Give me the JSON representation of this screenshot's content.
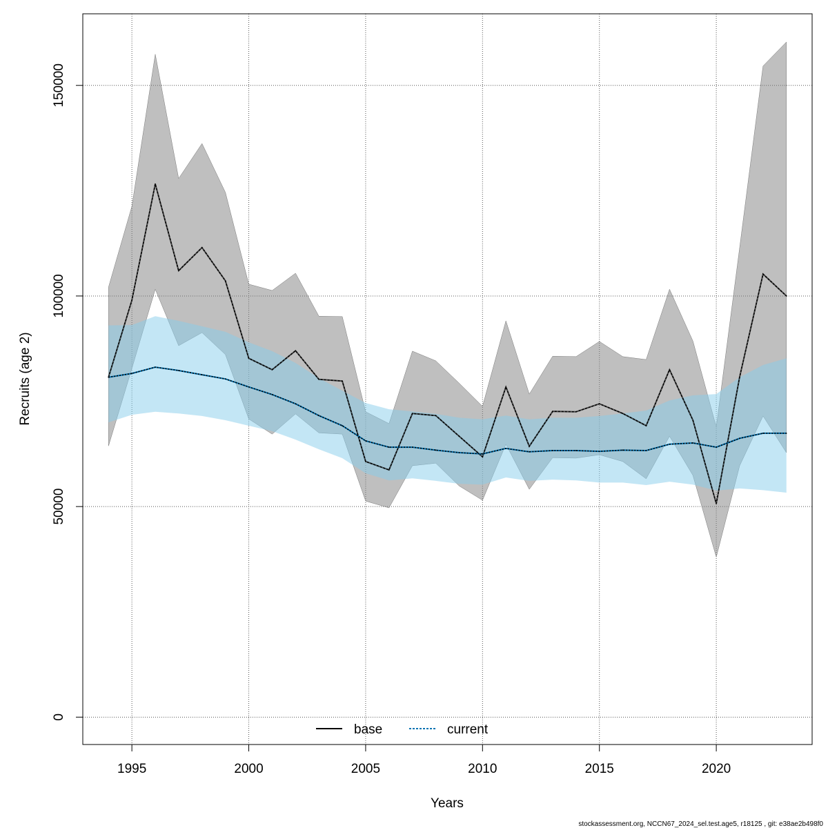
{
  "chart_data": {
    "type": "line",
    "title": "",
    "xlabel": "Years",
    "ylabel": "Recruits (age 2)",
    "xlim": [
      1992.9,
      2024.1
    ],
    "ylim": [
      -6500,
      167000
    ],
    "grid": true,
    "x_ticks": [
      "1995",
      "2000",
      "2005",
      "2010",
      "2015",
      "2020"
    ],
    "y_ticks": [
      "0",
      "50000",
      "100000",
      "150000"
    ],
    "legend_position": "bottom-center",
    "x": [
      1994,
      1995,
      1996,
      1997,
      1998,
      1999,
      2000,
      2001,
      2002,
      2003,
      2004,
      2005,
      2006,
      2007,
      2008,
      2009,
      2010,
      2011,
      2012,
      2013,
      2014,
      2015,
      2016,
      2017,
      2018,
      2019,
      2020,
      2021,
      2022,
      2023
    ],
    "series": [
      {
        "name": "base",
        "color": "#000000",
        "band_color": "#808080",
        "values": [
          80700,
          99000,
          126600,
          106000,
          111500,
          103600,
          85200,
          82500,
          87000,
          80200,
          79800,
          60700,
          58700,
          72100,
          71600,
          66700,
          61800,
          78400,
          64300,
          72600,
          72500,
          74400,
          72100,
          69200,
          82500,
          70500,
          50700,
          80800,
          105200,
          100000
        ],
        "upper": [
          102100,
          121300,
          157400,
          127900,
          136200,
          124600,
          102800,
          101300,
          105400,
          95200,
          95100,
          72500,
          69700,
          86900,
          84600,
          79300,
          73800,
          94100,
          76700,
          85700,
          85600,
          89200,
          85600,
          84900,
          101600,
          89300,
          68900,
          111500,
          154600,
          160300
        ],
        "lower": [
          64400,
          82800,
          101600,
          88200,
          91300,
          86100,
          70800,
          67200,
          72000,
          67500,
          67200,
          51300,
          49700,
          59700,
          60300,
          54900,
          51500,
          64800,
          54100,
          61600,
          61500,
          62300,
          60700,
          56600,
          66700,
          57400,
          38000,
          59700,
          71500,
          62800
        ]
      },
      {
        "name": "current",
        "color": "#0072B2",
        "band_color": "#87CEEB",
        "values": [
          80700,
          81600,
          83100,
          82300,
          81300,
          80300,
          78400,
          76600,
          74400,
          71600,
          69200,
          65600,
          64100,
          64100,
          63400,
          62800,
          62500,
          63800,
          63000,
          63300,
          63300,
          63100,
          63400,
          63300,
          64800,
          65100,
          64100,
          66200,
          67400,
          67400
        ],
        "upper": [
          93000,
          93100,
          95200,
          94100,
          92800,
          91500,
          89000,
          86900,
          84100,
          80500,
          77500,
          74600,
          73100,
          72600,
          72000,
          71100,
          70700,
          71600,
          70700,
          71100,
          71100,
          71500,
          72100,
          72800,
          75200,
          76400,
          76700,
          80700,
          83600,
          85200
        ],
        "lower": [
          70000,
          71800,
          72500,
          72100,
          71500,
          70500,
          69200,
          67900,
          65900,
          63600,
          61500,
          57900,
          56200,
          56700,
          56100,
          55400,
          55200,
          56900,
          56100,
          56400,
          56200,
          55700,
          55700,
          55100,
          55900,
          55200,
          53800,
          54300,
          53900,
          53300
        ]
      }
    ]
  },
  "footer": "stockassessment.org, NCCN67_2024_sel.test.age5, r18125 , git: e38ae2b498f0"
}
